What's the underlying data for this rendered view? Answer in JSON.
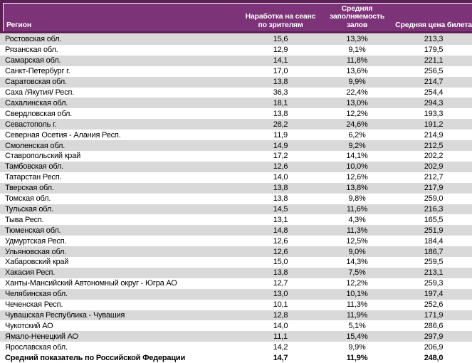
{
  "colors": {
    "header_bg": "#7d3378",
    "header_border": "#5a2155",
    "header_text": "#ffffff",
    "row_alt_bg": "#d9d9d9",
    "row_bg": "#ffffff",
    "body_text": "#000000"
  },
  "chart_data": {
    "type": "table",
    "title": "",
    "columns": [
      "Регион",
      "Наработка на сеанс по зрителям",
      "Средняя заполняемость залов",
      "Средняя цена билета"
    ],
    "rows": [
      [
        "Ростовская обл.",
        "15,6",
        "13,3%",
        "213,3"
      ],
      [
        "Рязанская обл.",
        "12,9",
        "9,1%",
        "179,5"
      ],
      [
        "Самарская обл.",
        "14,1",
        "11,8%",
        "221,1"
      ],
      [
        "Санкт-Петербург г.",
        "17,0",
        "13,6%",
        "256,5"
      ],
      [
        "Саратовская обл.",
        "13,8",
        "9,9%",
        "214,7"
      ],
      [
        "Саха /Якутия/ Респ.",
        "36,3",
        "22,4%",
        "254,4"
      ],
      [
        "Сахалинская обл.",
        "18,1",
        "13,0%",
        "294,3"
      ],
      [
        "Свердловская обл.",
        "13,8",
        "12,2%",
        "193,3"
      ],
      [
        "Севастополь г.",
        "28,2",
        "24,6%",
        "191,2"
      ],
      [
        "Северная Осетия - Алания Респ.",
        "11,9",
        "6,2%",
        "214,9"
      ],
      [
        "Смоленская обл.",
        "14,9",
        "9,2%",
        "212,5"
      ],
      [
        "Ставропольский край",
        "17,2",
        "14,1%",
        "202,2"
      ],
      [
        "Тамбовская обл.",
        "12,6",
        "10,0%",
        "202,9"
      ],
      [
        "Татарстан Респ.",
        "14,0",
        "12,6%",
        "212,7"
      ],
      [
        "Тверская обл.",
        "13,8",
        "13,8%",
        "217,9"
      ],
      [
        "Томская обл.",
        "13,8",
        "9,8%",
        "259,0"
      ],
      [
        "Тульская обл.",
        "14,5",
        "11,6%",
        "216,3"
      ],
      [
        "Тыва Респ.",
        "13,1",
        "4,3%",
        "165,5"
      ],
      [
        "Тюменская обл.",
        "14,8",
        "11,3%",
        "251,9"
      ],
      [
        "Удмуртская Респ.",
        "12,6",
        "12,5%",
        "184,4"
      ],
      [
        "Ульяновская обл.",
        "12,6",
        "9,0%",
        "186,7"
      ],
      [
        "Хабаровский край",
        "15,0",
        "14,3%",
        "259,5"
      ],
      [
        "Хакасия Респ.",
        "13,8",
        "7,5%",
        "213,1"
      ],
      [
        "Ханты-Мансийский Автономный округ - Югра АО",
        "12,7",
        "12,2%",
        "259,3"
      ],
      [
        "Челябинская обл.",
        "13,0",
        "10,1%",
        "197,4"
      ],
      [
        "Чеченская Респ.",
        "10,1",
        "11,3%",
        "252,6"
      ],
      [
        "Чувашская Республика - Чувашия",
        "12,8",
        "11,9%",
        "171,9"
      ],
      [
        "Чукотский АО",
        "14,0",
        "5,1%",
        "286,6"
      ],
      [
        "Ямало-Ненецкий АО",
        "11,1",
        "15,4%",
        "297,9"
      ],
      [
        "Ярославская обл.",
        "14,2",
        "9,9%",
        "206,9"
      ]
    ],
    "footer_row": [
      "Средний показатель по Российской Федерации",
      "14,7",
      "11,9%",
      "248,0"
    ],
    "layout": {
      "striping": "odd rows shaded gray",
      "value_alignment": "center",
      "region_alignment": "left"
    }
  }
}
